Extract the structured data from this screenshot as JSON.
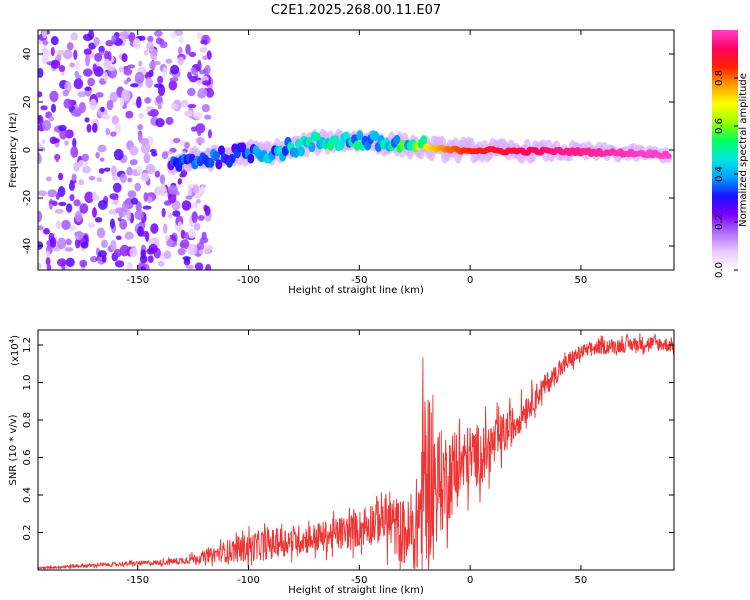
{
  "title": "C2E1.2025.268.00.11.E07",
  "chart_data": [
    {
      "type": "heatmap",
      "name": "spectrogram",
      "xlabel": "Height of straight line (km)",
      "ylabel": "Frequency (Hz)",
      "xlim": [
        -195,
        92
      ],
      "ylim": [
        -50,
        50
      ],
      "xticks": [
        -150,
        -100,
        -50,
        0,
        50
      ],
      "yticks": [
        -40,
        -20,
        0,
        20,
        40
      ],
      "colorbar": {
        "label": "Normalized spectral amplitude",
        "range": [
          0,
          1
        ],
        "ticks": [
          "0.0",
          "0.2",
          "0.4",
          "0.6",
          "0.8"
        ],
        "tick_values": [
          0.0,
          0.2,
          0.4,
          0.6,
          0.8
        ],
        "colormap": [
          "#ffffff",
          "#e8c8ff",
          "#b070ff",
          "#7a00ff",
          "#1a10ff",
          "#00a0ff",
          "#00e8e0",
          "#00ff60",
          "#9aff00",
          "#ffff00",
          "#ffa000",
          "#ff2000",
          "#ff0060",
          "#ff40c8"
        ]
      },
      "ridge": [
        {
          "x": -135,
          "f": -6,
          "a": 0.35
        },
        {
          "x": -125,
          "f": -4,
          "a": 0.4
        },
        {
          "x": -112,
          "f": -3,
          "a": 0.42
        },
        {
          "x": -100,
          "f": -1,
          "a": 0.45
        },
        {
          "x": -90,
          "f": -1,
          "a": 0.5
        },
        {
          "x": -80,
          "f": 1,
          "a": 0.5
        },
        {
          "x": -70,
          "f": 3,
          "a": 0.52
        },
        {
          "x": -60,
          "f": 4,
          "a": 0.55
        },
        {
          "x": -50,
          "f": 4,
          "a": 0.55
        },
        {
          "x": -40,
          "f": 3,
          "a": 0.55
        },
        {
          "x": -30,
          "f": 2,
          "a": 0.6
        },
        {
          "x": -20,
          "f": 1,
          "a": 0.7
        },
        {
          "x": -10,
          "f": 0,
          "a": 0.8
        },
        {
          "x": 0,
          "f": 0,
          "a": 0.85
        },
        {
          "x": 20,
          "f": -0.5,
          "a": 0.9
        },
        {
          "x": 40,
          "f": -0.5,
          "a": 0.95
        },
        {
          "x": 60,
          "f": -1,
          "a": 0.97
        },
        {
          "x": 80,
          "f": -1.5,
          "a": 1.0
        },
        {
          "x": 90,
          "f": -2,
          "a": 1.0
        }
      ]
    },
    {
      "type": "line",
      "name": "snr",
      "xlabel": "Height of straight line (km)",
      "ylabel": "SNR (10 * v/v)",
      "scale_label": "(x10",
      "scale_exponent": "4",
      "scale_suffix": ")",
      "xlim": [
        -195,
        92
      ],
      "ylim": [
        0,
        1.28
      ],
      "xticks": [
        -150,
        -100,
        -50,
        0,
        50
      ],
      "yticks": [
        0.2,
        0.4,
        0.6,
        0.8,
        1.0,
        1.2
      ],
      "ytick_labels": [
        "0.2",
        "0.4",
        "0.6",
        "0.8",
        "1.0",
        "1.2"
      ],
      "color": "#ee3333",
      "series": [
        {
          "name": "SNR",
          "x": [
            -195,
            -180,
            -160,
            -140,
            -130,
            -120,
            -110,
            -100,
            -90,
            -80,
            -70,
            -60,
            -50,
            -45,
            -40,
            -35,
            -30,
            -25,
            -22,
            -20,
            -15,
            -10,
            -5,
            0,
            5,
            10,
            15,
            20,
            25,
            30,
            35,
            40,
            45,
            50,
            55,
            60,
            70,
            80,
            92
          ],
          "y": [
            0.01,
            0.02,
            0.03,
            0.04,
            0.05,
            0.07,
            0.1,
            0.12,
            0.14,
            0.16,
            0.17,
            0.19,
            0.22,
            0.25,
            0.28,
            0.24,
            0.2,
            0.18,
            0.35,
            0.55,
            0.45,
            0.5,
            0.55,
            0.6,
            0.62,
            0.66,
            0.72,
            0.78,
            0.86,
            0.93,
            1.0,
            1.06,
            1.12,
            1.16,
            1.18,
            1.19,
            1.2,
            1.21,
            1.2
          ],
          "spread": [
            0.005,
            0.01,
            0.01,
            0.015,
            0.02,
            0.03,
            0.06,
            0.08,
            0.08,
            0.08,
            0.08,
            0.09,
            0.1,
            0.12,
            0.14,
            0.16,
            0.18,
            0.2,
            0.45,
            0.55,
            0.3,
            0.25,
            0.2,
            0.18,
            0.16,
            0.14,
            0.12,
            0.1,
            0.08,
            0.07,
            0.06,
            0.05,
            0.05,
            0.04,
            0.04,
            0.04,
            0.04,
            0.04,
            0.04
          ]
        }
      ]
    }
  ]
}
